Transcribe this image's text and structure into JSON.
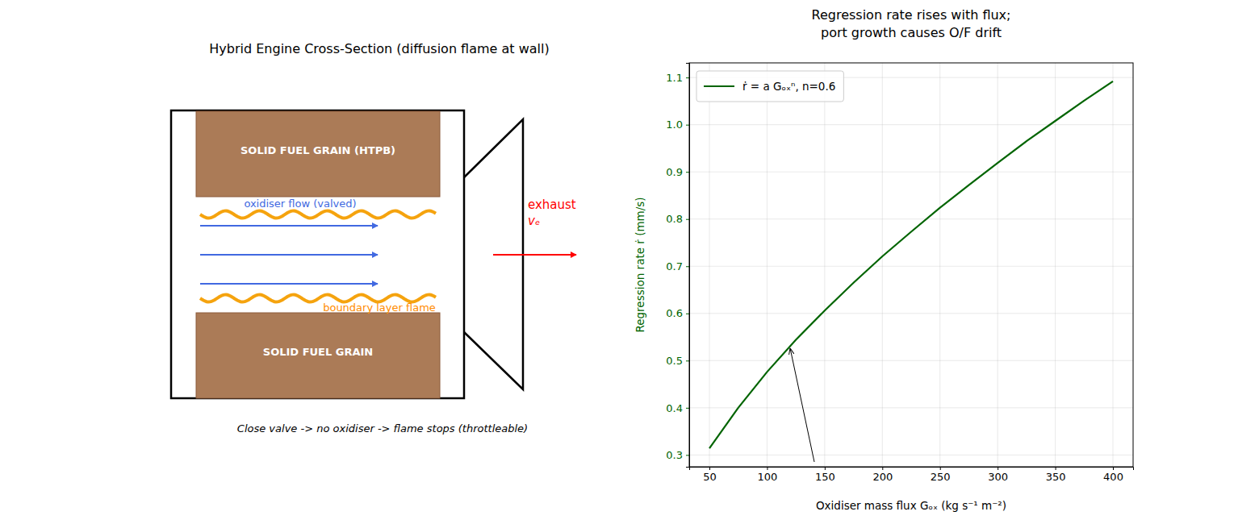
{
  "diagram": {
    "title": "Hybrid Engine Cross-Section (diffusion flame at wall)",
    "grain_top": "SOLID FUEL GRAIN (HTPB)",
    "grain_bottom": "SOLID FUEL GRAIN",
    "oxidiser_label": "oxidiser flow (valved)",
    "flame_label": "boundary layer flame",
    "exhaust_label": [
      "exhaust",
      "vₑ"
    ],
    "caption": "Close valve -> no oxidiser -> flame stops (throttleable)"
  },
  "chart_data": {
    "type": "line",
    "title": "Regression rate rises with flux;\nport growth causes O/F drift",
    "x_label": "Oxidiser mass flux Gₒₓ  (kg s⁻¹ m⁻²)",
    "y_label": "Regression rate ṙ  (mm/s)",
    "x": [
      50,
      75,
      100,
      125,
      150,
      175,
      200,
      225,
      250,
      275,
      300,
      325,
      350,
      375,
      400
    ],
    "series": [
      {
        "name": "ṙ = a Gₒₓⁿ, n=0.6",
        "color": "#006400",
        "values": [
          0.314,
          0.4,
          0.476,
          0.544,
          0.606,
          0.665,
          0.721,
          0.773,
          0.824,
          0.872,
          0.919,
          0.965,
          1.008,
          1.051,
          1.092
        ]
      }
    ],
    "xlim": [
      32.5,
      417.5
    ],
    "ylim": [
      0.275,
      1.131
    ],
    "xticks": [
      50,
      100,
      150,
      200,
      250,
      300,
      350,
      400
    ],
    "yticks": [
      0.3,
      0.4,
      0.5,
      0.6,
      0.7,
      0.8,
      0.9,
      {
        "value": 1,
        "label": "1.0"
      },
      1.1
    ],
    "annotations": [
      {
        "x": 120,
        "y": 0.53
      }
    ],
    "grid": true,
    "legend": "upper left"
  }
}
